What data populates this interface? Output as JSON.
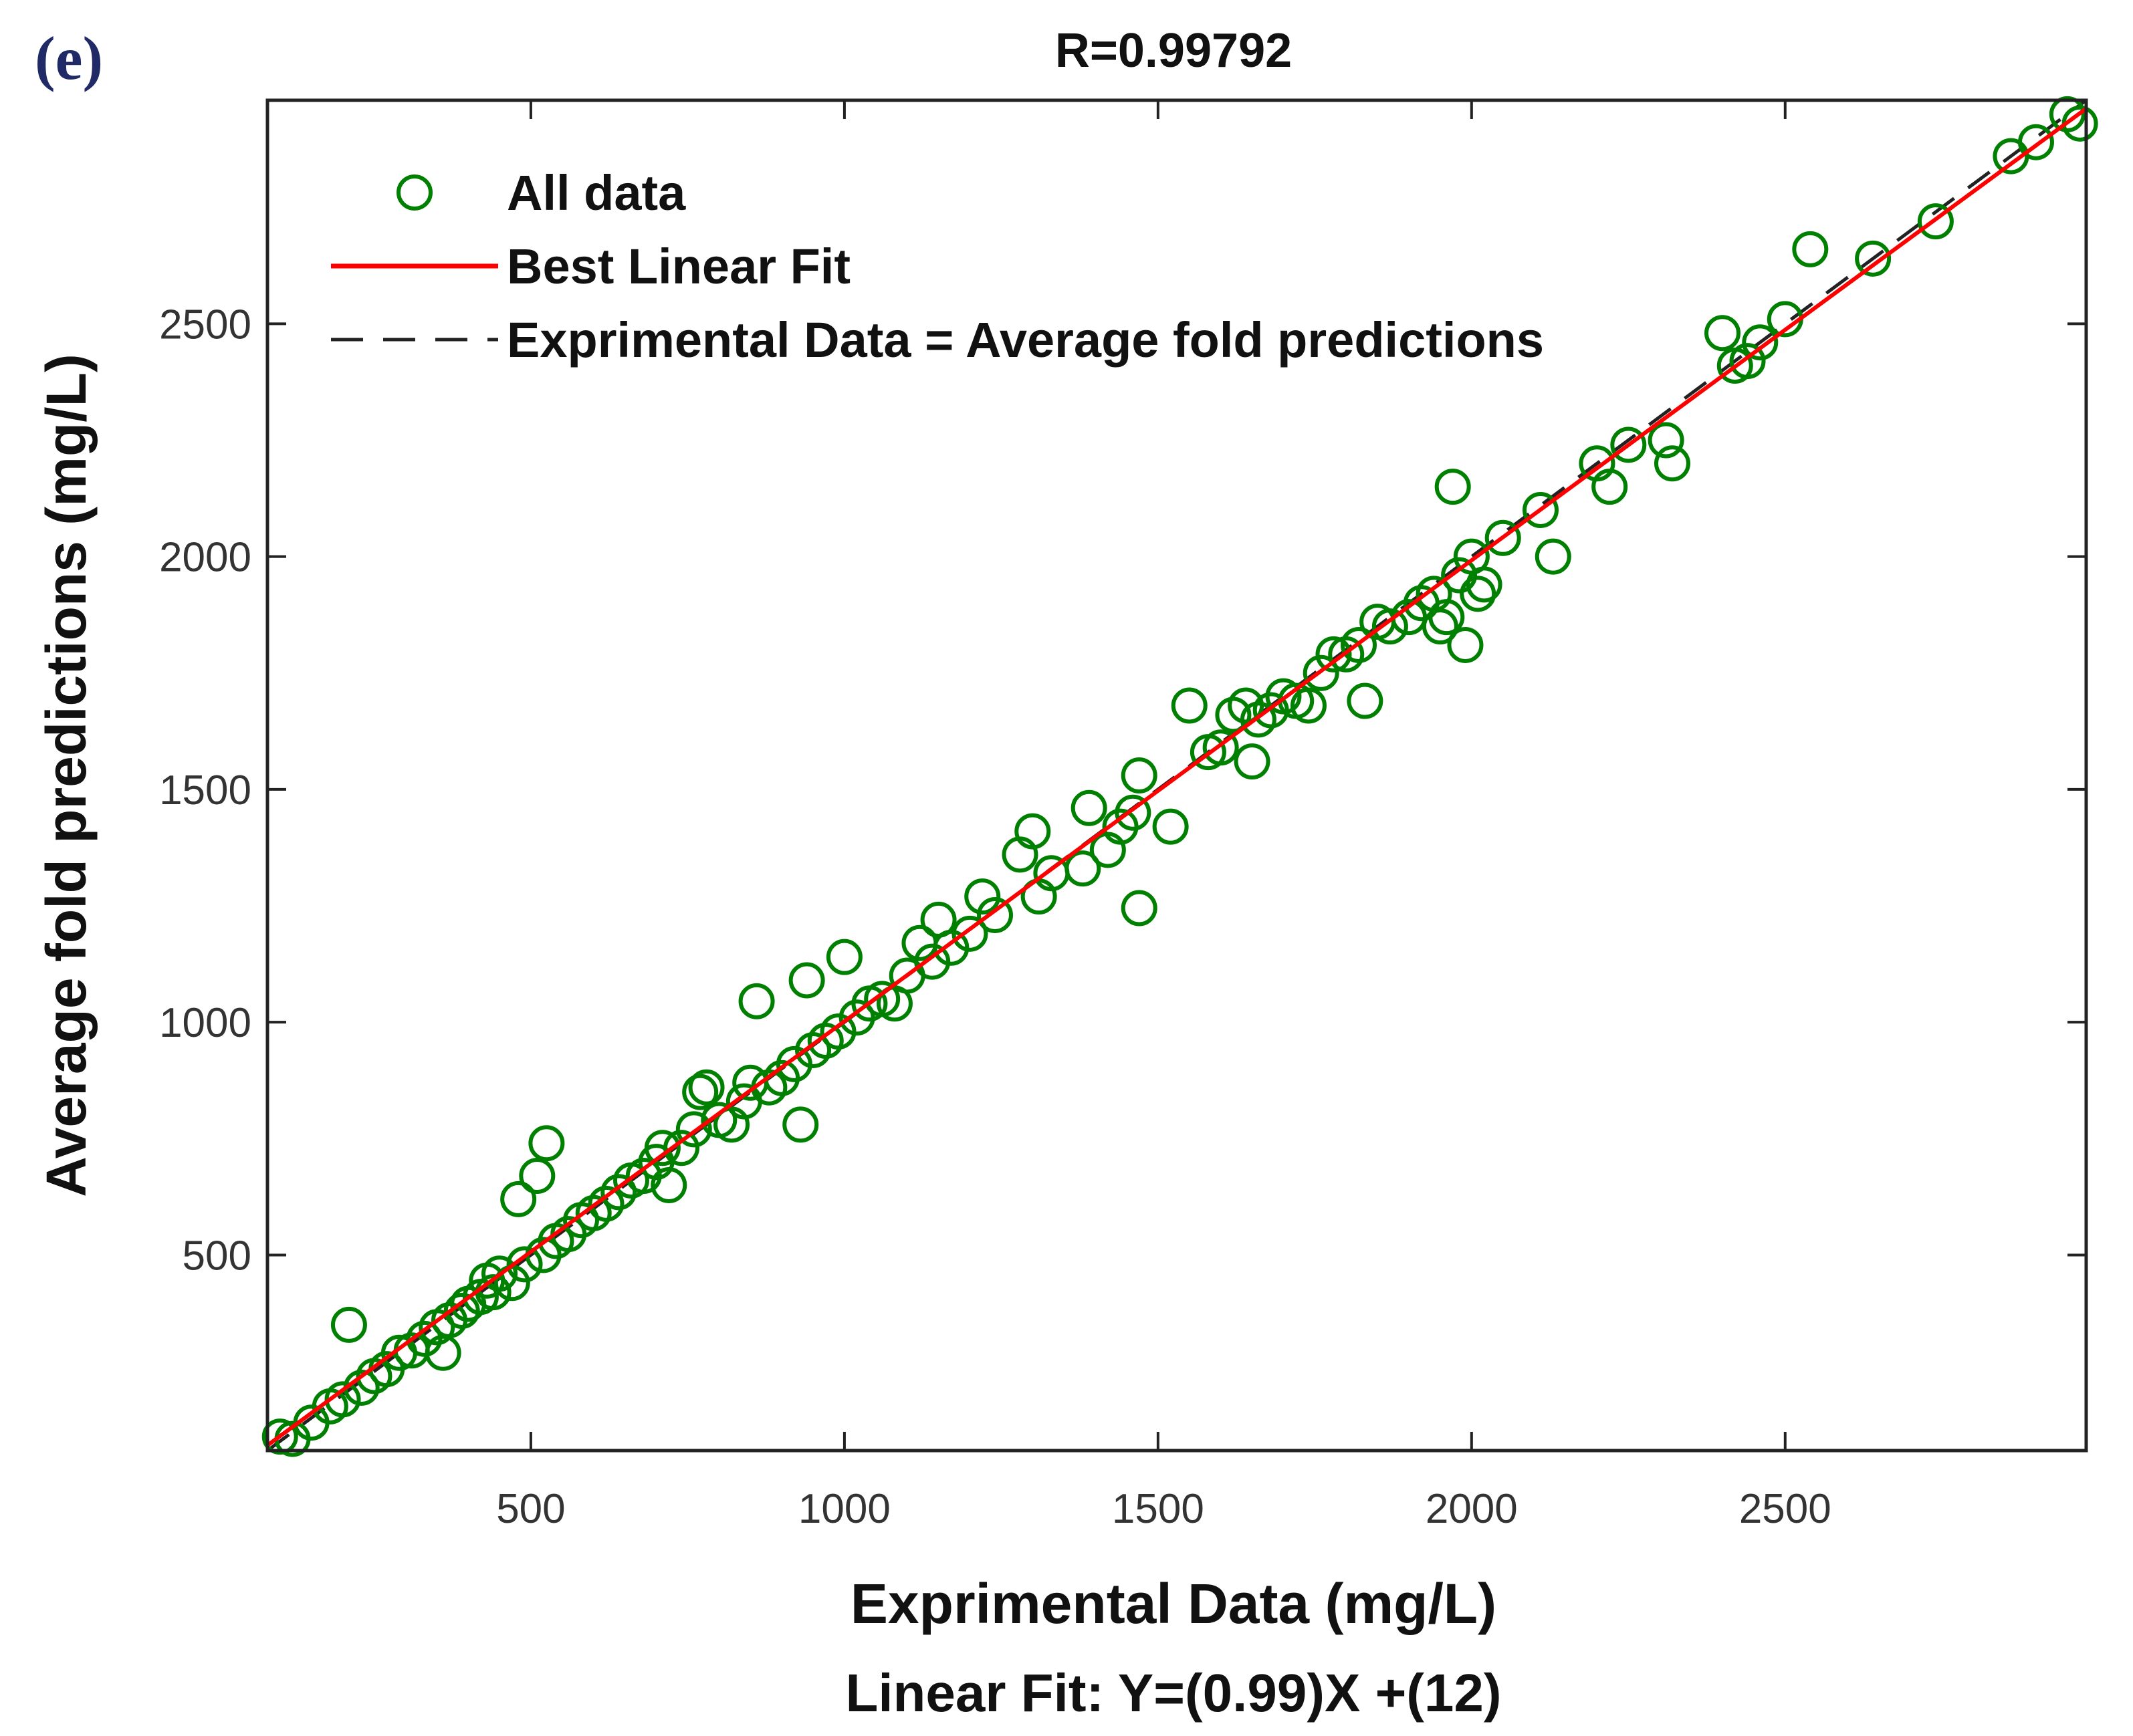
{
  "chart_data": {
    "type": "scatter",
    "panel_label": "(e)",
    "title": "R=0.99792",
    "xlabel": "Exprimental Data (mg/L)",
    "ylabel": "Average fold predictions (mg/L)",
    "fit_equation": "Linear Fit: Y=(0.99)X +(12)",
    "xlim": [
      80,
      2980
    ],
    "ylim": [
      80,
      2980
    ],
    "xticks": [
      500,
      1000,
      1500,
      2000,
      2500
    ],
    "yticks": [
      500,
      1000,
      1500,
      2000,
      2500
    ],
    "xtick_labels": [
      "500",
      "1000",
      "1500",
      "2000",
      "2500"
    ],
    "ytick_labels": [
      "500",
      "1000",
      "1500",
      "2000",
      "2500"
    ],
    "grid": false,
    "legend_position": "top-left",
    "legend": [
      {
        "label": "All data",
        "style": "circle-marker",
        "color": "#008000"
      },
      {
        "label": "Best Linear Fit",
        "style": "solid-line",
        "color": "#ff0000"
      },
      {
        "label": "Exprimental Data = Average fold predictions",
        "style": "dashed-line",
        "color": "#222222"
      }
    ],
    "fit": {
      "slope": 0.99,
      "intercept": 12
    },
    "series": [
      {
        "name": "All data",
        "color": "#008000",
        "points": [
          [
            100,
            110
          ],
          [
            120,
            105
          ],
          [
            150,
            140
          ],
          [
            180,
            175
          ],
          [
            200,
            190
          ],
          [
            210,
            350
          ],
          [
            230,
            215
          ],
          [
            250,
            240
          ],
          [
            270,
            255
          ],
          [
            290,
            290
          ],
          [
            310,
            295
          ],
          [
            330,
            320
          ],
          [
            350,
            345
          ],
          [
            360,
            290
          ],
          [
            370,
            360
          ],
          [
            390,
            380
          ],
          [
            400,
            395
          ],
          [
            420,
            410
          ],
          [
            430,
            445
          ],
          [
            440,
            420
          ],
          [
            450,
            460
          ],
          [
            470,
            440
          ],
          [
            480,
            620
          ],
          [
            490,
            480
          ],
          [
            510,
            670
          ],
          [
            520,
            500
          ],
          [
            525,
            740
          ],
          [
            540,
            530
          ],
          [
            560,
            545
          ],
          [
            580,
            575
          ],
          [
            600,
            590
          ],
          [
            620,
            610
          ],
          [
            640,
            635
          ],
          [
            660,
            660
          ],
          [
            680,
            670
          ],
          [
            700,
            700
          ],
          [
            710,
            730
          ],
          [
            720,
            650
          ],
          [
            740,
            730
          ],
          [
            760,
            770
          ],
          [
            770,
            850
          ],
          [
            780,
            860
          ],
          [
            800,
            790
          ],
          [
            820,
            780
          ],
          [
            840,
            830
          ],
          [
            850,
            870
          ],
          [
            860,
            1045
          ],
          [
            880,
            860
          ],
          [
            900,
            880
          ],
          [
            920,
            910
          ],
          [
            930,
            780
          ],
          [
            940,
            1090
          ],
          [
            950,
            940
          ],
          [
            970,
            960
          ],
          [
            990,
            980
          ],
          [
            1000,
            1140
          ],
          [
            1020,
            1010
          ],
          [
            1040,
            1040
          ],
          [
            1060,
            1050
          ],
          [
            1080,
            1040
          ],
          [
            1100,
            1100
          ],
          [
            1120,
            1170
          ],
          [
            1140,
            1130
          ],
          [
            1150,
            1220
          ],
          [
            1170,
            1160
          ],
          [
            1200,
            1190
          ],
          [
            1220,
            1270
          ],
          [
            1240,
            1230
          ],
          [
            1280,
            1360
          ],
          [
            1300,
            1410
          ],
          [
            1310,
            1270
          ],
          [
            1330,
            1320
          ],
          [
            1380,
            1330
          ],
          [
            1390,
            1460
          ],
          [
            1420,
            1370
          ],
          [
            1440,
            1420
          ],
          [
            1460,
            1450
          ],
          [
            1470,
            1530
          ],
          [
            1470,
            1245
          ],
          [
            1520,
            1420
          ],
          [
            1550,
            1680
          ],
          [
            1580,
            1580
          ],
          [
            1600,
            1590
          ],
          [
            1620,
            1660
          ],
          [
            1640,
            1680
          ],
          [
            1650,
            1560
          ],
          [
            1660,
            1650
          ],
          [
            1680,
            1670
          ],
          [
            1700,
            1700
          ],
          [
            1720,
            1690
          ],
          [
            1740,
            1680
          ],
          [
            1760,
            1750
          ],
          [
            1780,
            1790
          ],
          [
            1800,
            1790
          ],
          [
            1820,
            1810
          ],
          [
            1830,
            1690
          ],
          [
            1850,
            1860
          ],
          [
            1870,
            1850
          ],
          [
            1900,
            1870
          ],
          [
            1920,
            1900
          ],
          [
            1940,
            1920
          ],
          [
            1950,
            1850
          ],
          [
            1960,
            1870
          ],
          [
            1970,
            2150
          ],
          [
            1980,
            1960
          ],
          [
            1990,
            1810
          ],
          [
            2000,
            2000
          ],
          [
            2010,
            1920
          ],
          [
            2020,
            1940
          ],
          [
            2050,
            2040
          ],
          [
            2110,
            2100
          ],
          [
            2130,
            2000
          ],
          [
            2200,
            2200
          ],
          [
            2220,
            2150
          ],
          [
            2250,
            2240
          ],
          [
            2310,
            2250
          ],
          [
            2320,
            2200
          ],
          [
            2400,
            2480
          ],
          [
            2420,
            2410
          ],
          [
            2440,
            2420
          ],
          [
            2460,
            2460
          ],
          [
            2500,
            2510
          ],
          [
            2540,
            2660
          ],
          [
            2640,
            2640
          ],
          [
            2740,
            2720
          ],
          [
            2860,
            2860
          ],
          [
            2900,
            2890
          ],
          [
            2950,
            2950
          ],
          [
            2970,
            2930
          ]
        ]
      }
    ]
  }
}
